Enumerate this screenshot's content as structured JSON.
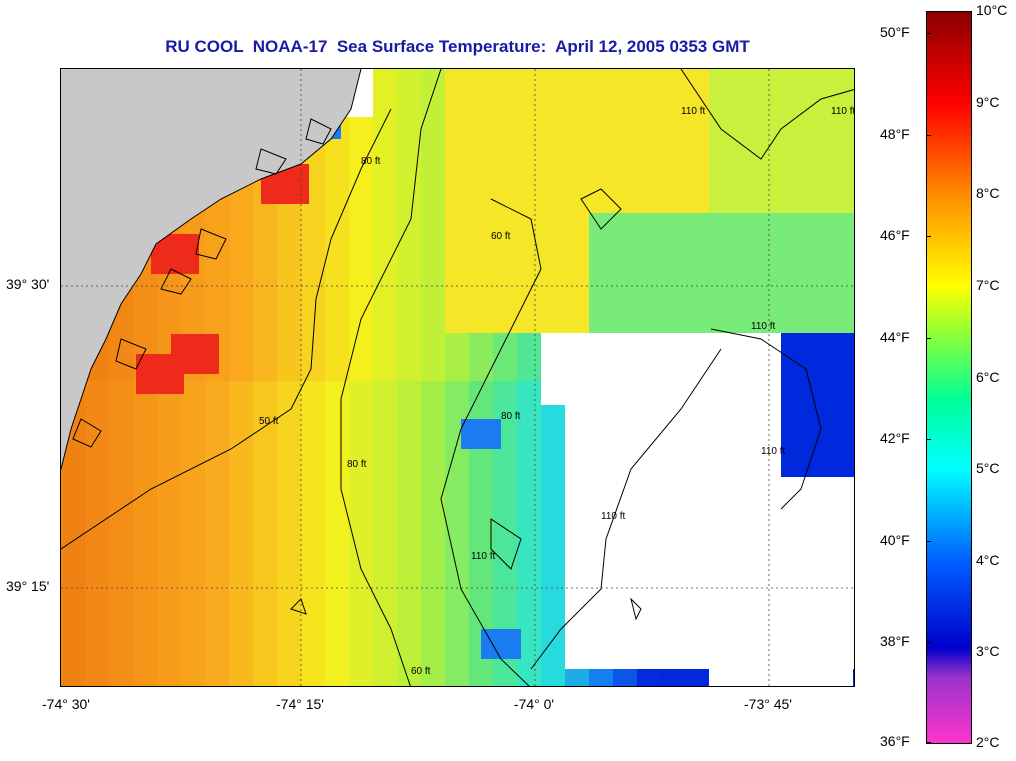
{
  "title": "RU COOL  NOAA-17  Sea Surface Temperature:  April 12, 2005 0353 GMT",
  "map": {
    "lat_labels": [
      "39° 30'",
      "39° 15'"
    ],
    "lon_labels": [
      "-74° 30'",
      "-74° 15'",
      "-74° 0'",
      "-73° 45'"
    ],
    "contour_labels": [
      "50 ft",
      "60 ft",
      "60 ft",
      "80 ft",
      "80 ft",
      "80 ft",
      "110 ft",
      "110 ft",
      "110 ft",
      "110 ft",
      "110 ft",
      "110 ft"
    ],
    "colors": {
      "land": "#c8c8c8",
      "no_data": "#ffffff",
      "coastline": "#000000"
    }
  },
  "colorbar": {
    "fahrenheit_labels": [
      "50°F",
      "48°F",
      "46°F",
      "44°F",
      "42°F",
      "40°F",
      "38°F",
      "36°F"
    ],
    "celsius_labels": [
      "10°C",
      "9°C",
      "8°C",
      "7°C",
      "6°C",
      "5°C",
      "4°C",
      "3°C",
      "2°C"
    ]
  }
}
